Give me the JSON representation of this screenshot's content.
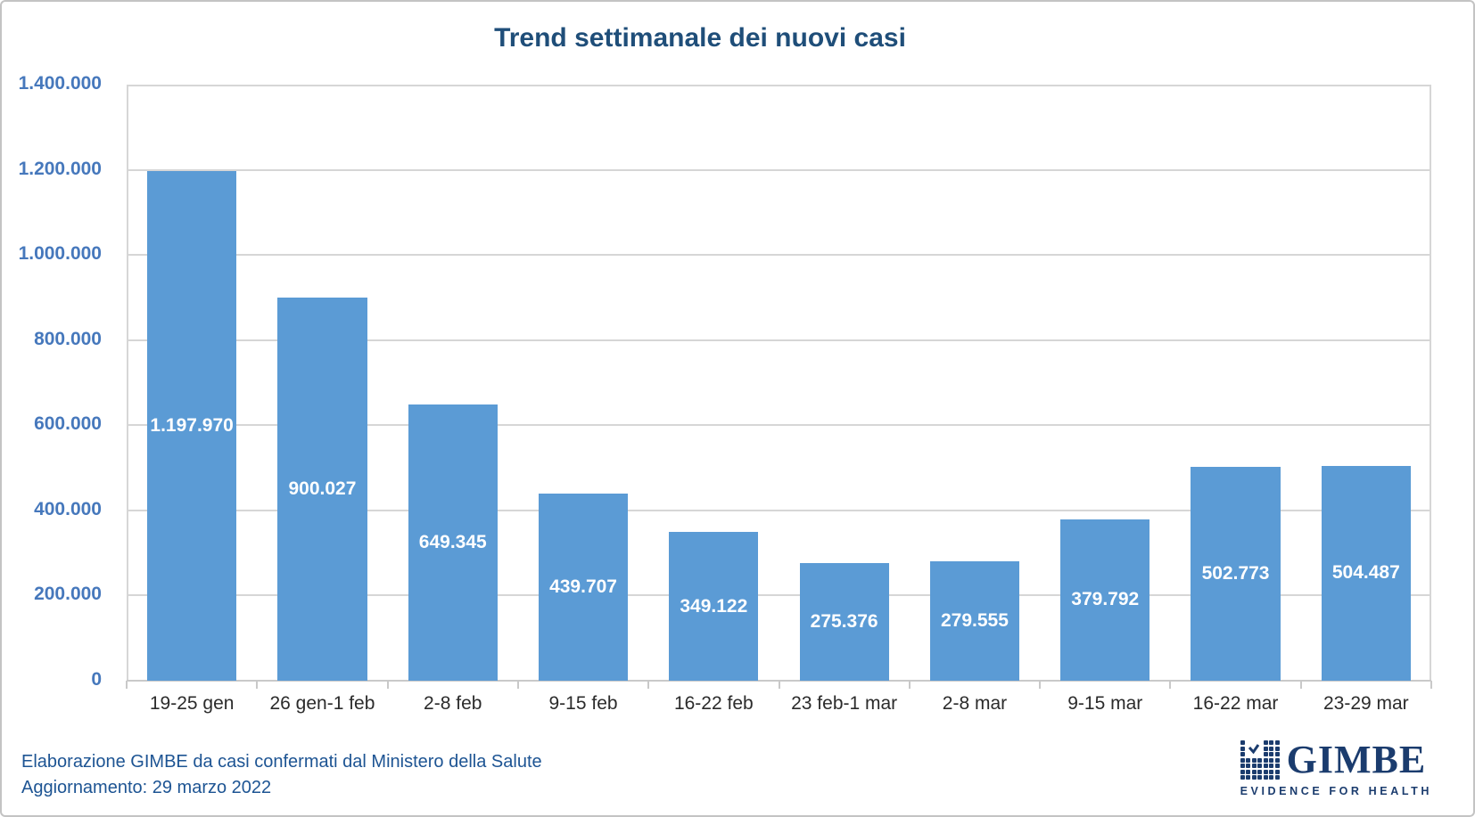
{
  "title": "Trend settimanale dei nuovi casi",
  "chart_data": {
    "type": "bar",
    "title": "Trend settimanale dei nuovi casi",
    "categories": [
      "19-25 gen",
      "26 gen-1 feb",
      "2-8 feb",
      "9-15 feb",
      "16-22 feb",
      "23 feb-1 mar",
      "2-8 mar",
      "9-15 mar",
      "16-22 mar",
      "23-29 mar"
    ],
    "values": [
      1197970,
      900027,
      649345,
      439707,
      349122,
      275376,
      279555,
      379792,
      502773,
      504487
    ],
    "value_labels": [
      "1.197.970",
      "900.027",
      "649.345",
      "439.707",
      "349.122",
      "275.376",
      "279.555",
      "379.792",
      "502.773",
      "504.487"
    ],
    "y_ticks": [
      "1.400.000",
      "1.200.000",
      "1.000.000",
      "800.000",
      "600.000",
      "400.000",
      "200.000",
      "0"
    ],
    "ylim": [
      0,
      1400000
    ],
    "grid": true,
    "legend": "none",
    "xlabel": "",
    "ylabel": ""
  },
  "footer": {
    "line1": "Elaborazione GIMBE da casi confermati dal Ministero della Salute",
    "line2": "Aggiornamento: 29 marzo 2022"
  },
  "logo": {
    "wordmark": "GIMBE",
    "tagline": "EVIDENCE FOR HEALTH"
  },
  "colors": {
    "bar": "#5B9BD5",
    "title": "#1F4E79",
    "axis_label": "#4678BC",
    "x_label": "#2b2b2b",
    "gridline": "#D6D6D6",
    "footer": "#1D5493",
    "logo_navy": "#1B3C6E",
    "value_label": "#FFFFFF"
  }
}
